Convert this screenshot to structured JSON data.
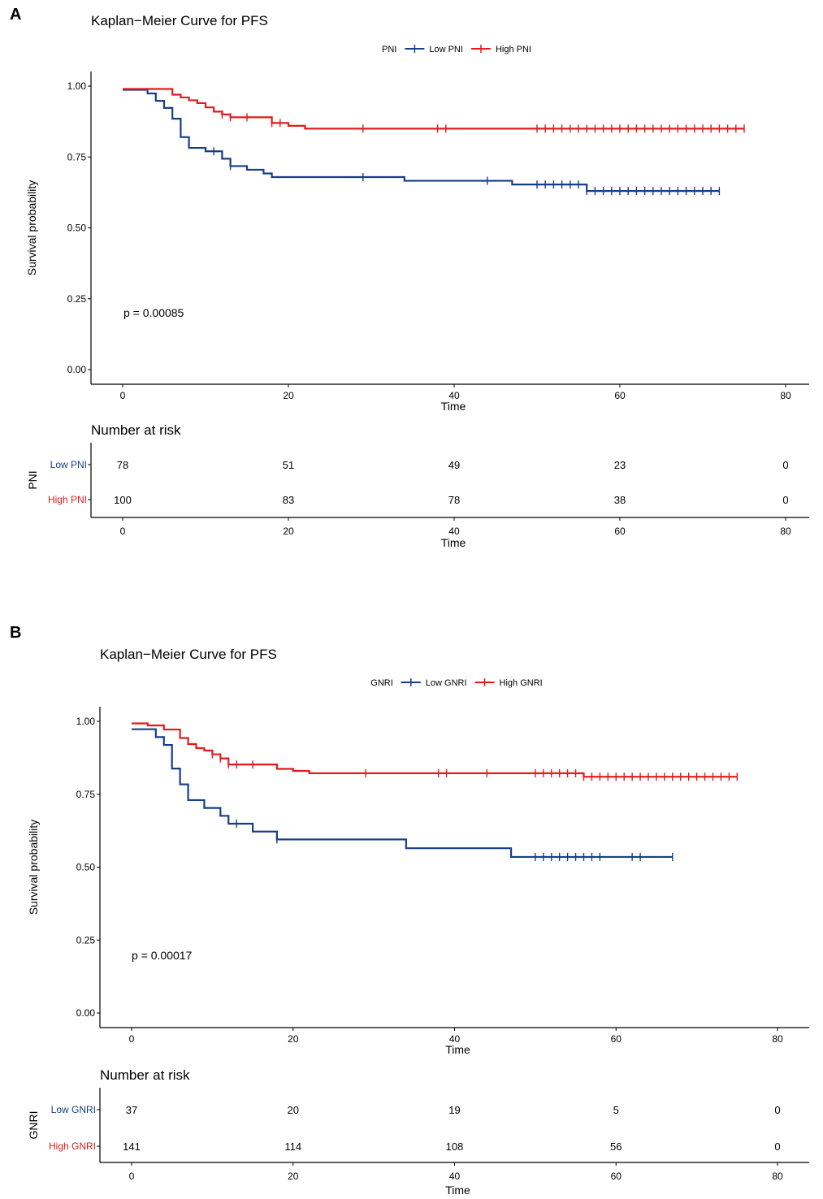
{
  "colors": {
    "low": "#153E8A",
    "high": "#E31A1C",
    "axis": "#000000"
  },
  "chart_data": [
    {
      "panel_label": "A",
      "type": "line",
      "title": "Kaplan−Meier Curve for PFS",
      "xlabel": "Time",
      "ylabel": "Survival probability",
      "xlim": [
        -4,
        82
      ],
      "ylim": [
        -0.05,
        1.05
      ],
      "xticks": [
        "0",
        "20",
        "40",
        "60",
        "80"
      ],
      "yticks": [
        "0.00",
        "0.25",
        "0.50",
        "0.75",
        "1.00"
      ],
      "legend": {
        "title": "PNI",
        "placement": "top-center",
        "labels": [
          "Low PNI",
          "High PNI"
        ]
      },
      "pvalue": "p = 0.00085",
      "series": [
        {
          "name": "Low PNI",
          "steps": [
            [
              0,
              0.987
            ],
            [
              3,
              0.974
            ],
            [
              4,
              0.948
            ],
            [
              5,
              0.923
            ],
            [
              6,
              0.885
            ],
            [
              7,
              0.82
            ],
            [
              8,
              0.782
            ],
            [
              10,
              0.77
            ],
            [
              12,
              0.744
            ],
            [
              13,
              0.718
            ],
            [
              15,
              0.705
            ],
            [
              17,
              0.692
            ],
            [
              18,
              0.679
            ],
            [
              34,
              0.666
            ],
            [
              47,
              0.653
            ],
            [
              56,
              0.63
            ],
            [
              72,
              0.63
            ]
          ],
          "censor": [
            11,
            13,
            29,
            44,
            50,
            51,
            52,
            53,
            54,
            55,
            56,
            57,
            58,
            59,
            60,
            61,
            62,
            63,
            64,
            65,
            66,
            67,
            68,
            69,
            70,
            71,
            72
          ]
        },
        {
          "name": "High PNI",
          "steps": [
            [
              0,
              0.99
            ],
            [
              6,
              0.97
            ],
            [
              7,
              0.96
            ],
            [
              8,
              0.95
            ],
            [
              9,
              0.94
            ],
            [
              10,
              0.925
            ],
            [
              11,
              0.91
            ],
            [
              12,
              0.9
            ],
            [
              13,
              0.89
            ],
            [
              18,
              0.87
            ],
            [
              20,
              0.86
            ],
            [
              22,
              0.85
            ],
            [
              75,
              0.85
            ]
          ],
          "censor": [
            12,
            13,
            15,
            18,
            19,
            29,
            38,
            39,
            50,
            51,
            52,
            53,
            54,
            55,
            56,
            57,
            58,
            59,
            60,
            61,
            62,
            63,
            64,
            65,
            66,
            67,
            68,
            69,
            70,
            71,
            72,
            73,
            74,
            75
          ]
        }
      ],
      "risk_table": {
        "title": "Number at risk",
        "strata_title": "PNI",
        "xticks": [
          "0",
          "20",
          "40",
          "60",
          "80"
        ],
        "xlabel": "Time",
        "rows": [
          {
            "name": "Low PNI",
            "values": [
              "78",
              "51",
              "49",
              "23",
              "0"
            ]
          },
          {
            "name": "High PNI",
            "values": [
              "100",
              "83",
              "78",
              "38",
              "0"
            ]
          }
        ]
      }
    },
    {
      "panel_label": "B",
      "type": "line",
      "title": "Kaplan−Meier Curve for PFS",
      "xlabel": "Time",
      "ylabel": "Survival probability",
      "xlim": [
        -4,
        84
      ],
      "ylim": [
        -0.05,
        1.05
      ],
      "xticks": [
        "0",
        "20",
        "40",
        "60",
        "80"
      ],
      "yticks": [
        "0.00",
        "0.25",
        "0.50",
        "0.75",
        "1.00"
      ],
      "legend": {
        "title": "GNRI",
        "placement": "top-center",
        "labels": [
          "Low GNRI",
          "High GNRI"
        ]
      },
      "pvalue": "p = 0.00017",
      "series": [
        {
          "name": "Low GNRI",
          "steps": [
            [
              0,
              0.973
            ],
            [
              3,
              0.946
            ],
            [
              4,
              0.919
            ],
            [
              5,
              0.838
            ],
            [
              6,
              0.784
            ],
            [
              7,
              0.73
            ],
            [
              9,
              0.703
            ],
            [
              11,
              0.676
            ],
            [
              12,
              0.649
            ],
            [
              15,
              0.622
            ],
            [
              18,
              0.595
            ],
            [
              34,
              0.565
            ],
            [
              47,
              0.535
            ],
            [
              67,
              0.535
            ]
          ],
          "censor": [
            13,
            18,
            50,
            51,
            52,
            53,
            54,
            55,
            56,
            57,
            58,
            62,
            63,
            67
          ]
        },
        {
          "name": "High GNRI",
          "steps": [
            [
              0,
              0.993
            ],
            [
              2,
              0.986
            ],
            [
              4,
              0.972
            ],
            [
              6,
              0.943
            ],
            [
              7,
              0.922
            ],
            [
              8,
              0.908
            ],
            [
              9,
              0.9
            ],
            [
              10,
              0.887
            ],
            [
              11,
              0.873
            ],
            [
              12,
              0.852
            ],
            [
              18,
              0.837
            ],
            [
              20,
              0.83
            ],
            [
              22,
              0.822
            ],
            [
              56,
              0.81
            ],
            [
              75,
              0.81
            ]
          ],
          "censor": [
            10,
            11,
            12,
            13,
            15,
            29,
            38,
            39,
            44,
            50,
            51,
            52,
            53,
            54,
            55,
            56,
            57,
            58,
            59,
            60,
            61,
            62,
            63,
            64,
            65,
            66,
            67,
            68,
            69,
            70,
            71,
            72,
            73,
            74,
            75
          ]
        }
      ],
      "risk_table": {
        "title": "Number at risk",
        "strata_title": "GNRI",
        "xticks": [
          "0",
          "20",
          "40",
          "60",
          "80"
        ],
        "xlabel": "Time",
        "rows": [
          {
            "name": "Low GNRI",
            "values": [
              "37",
              "20",
              "19",
              "5",
              "0"
            ]
          },
          {
            "name": "High GNRI",
            "values": [
              "141",
              "114",
              "108",
              "56",
              "0"
            ]
          }
        ]
      }
    }
  ]
}
